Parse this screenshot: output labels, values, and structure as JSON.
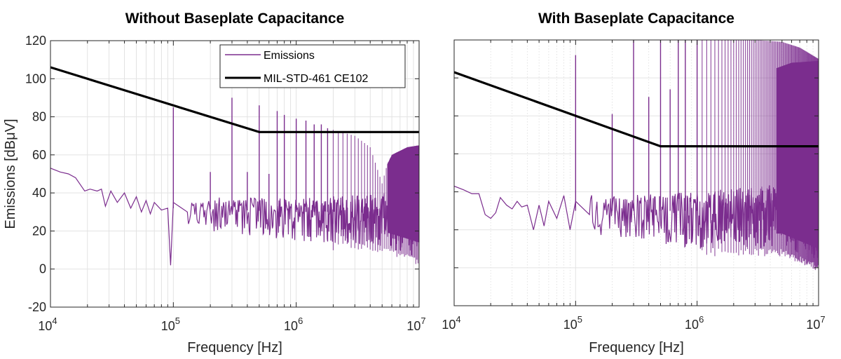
{
  "chart_data": [
    {
      "type": "line",
      "title": "Without Baseplate Capacitance",
      "xlabel": "Frequency [Hz]",
      "ylabel": "Emissions [dBμV]",
      "xscale": "log",
      "xlim": [
        10000,
        10000000
      ],
      "ylim": [
        -20,
        120
      ],
      "yticks": [
        -20,
        0,
        20,
        40,
        60,
        80,
        100,
        120
      ],
      "ytick_labels": [
        "-20",
        "0",
        "20",
        "40",
        "60",
        "80",
        "100",
        "120"
      ],
      "xticks": [
        10000,
        100000,
        1000000,
        10000000
      ],
      "xtick_labels": [
        {
          "base": "10",
          "exp": "4"
        },
        {
          "base": "10",
          "exp": "5"
        },
        {
          "base": "10",
          "exp": "6"
        },
        {
          "base": "10",
          "exp": "7"
        }
      ],
      "show_ytick_labels": true,
      "grid": true,
      "legend": {
        "placement": "top-right",
        "entries": [
          "Emissions",
          "MIL-STD-461 CE102"
        ]
      },
      "series": [
        {
          "name": "Emissions",
          "color": "#7B2D8E",
          "kind": "noisy-spectrum",
          "low_freq_trend": [
            [
              10000,
              53
            ],
            [
              12000,
              51
            ],
            [
              14000,
              50
            ],
            [
              16000,
              48
            ],
            [
              19000,
              41
            ],
            [
              21000,
              42
            ],
            [
              24000,
              41
            ],
            [
              26000,
              42
            ],
            [
              28000,
              33
            ],
            [
              31000,
              41
            ],
            [
              35000,
              35
            ],
            [
              40000,
              40
            ],
            [
              45000,
              32
            ],
            [
              50000,
              38
            ],
            [
              55000,
              30
            ],
            [
              60000,
              36
            ],
            [
              65000,
              29
            ],
            [
              70000,
              35
            ],
            [
              80000,
              31
            ],
            [
              90000,
              32
            ],
            [
              95000,
              2
            ],
            [
              100000,
              35
            ],
            [
              130000,
              30
            ]
          ],
          "noise_center": [
            [
              100000,
              32
            ],
            [
              1000000,
              30
            ],
            [
              5000000,
              30
            ],
            [
              10000000,
              30
            ]
          ],
          "noise_upper": [
            [
              100000,
              38
            ],
            [
              1000000,
              37
            ],
            [
              5000000,
              40
            ],
            [
              10000000,
              40
            ]
          ],
          "noise_lower": [
            [
              100000,
              22
            ],
            [
              1000000,
              15
            ],
            [
              5000000,
              12
            ],
            [
              10000000,
              6
            ]
          ],
          "spikes": [
            [
              100000,
              85
            ],
            [
              200000,
              51
            ],
            [
              300000,
              90
            ],
            [
              400000,
              51
            ],
            [
              500000,
              86
            ],
            [
              600000,
              50
            ],
            [
              700000,
              83
            ],
            [
              800000,
              81
            ],
            [
              1000000,
              79
            ],
            [
              1200000,
              78
            ],
            [
              1400000,
              76
            ],
            [
              1600000,
              76
            ],
            [
              1800000,
              74
            ]
          ],
          "harmonic_envelope": [
            [
              1800000,
              74
            ],
            [
              3000000,
              70
            ],
            [
              4000000,
              64
            ],
            [
              5000000,
              45
            ],
            [
              5500000,
              55
            ],
            [
              6000000,
              60
            ],
            [
              8000000,
              64
            ],
            [
              10000000,
              65
            ]
          ],
          "harmonic_fund_hz": 200000,
          "dense_band_start_hz": 5500000
        },
        {
          "name": "MIL-STD-461 CE102",
          "color": "#000000",
          "kind": "limit",
          "points": [
            [
              10000,
              106
            ],
            [
              500000,
              72
            ],
            [
              10000000,
              72
            ]
          ]
        }
      ]
    },
    {
      "type": "line",
      "title": "With Baseplate Capacitance",
      "xlabel": "Frequency [Hz]",
      "ylabel": "",
      "xscale": "log",
      "xlim": [
        10000,
        10000000
      ],
      "ylim": [
        -20,
        120
      ],
      "yticks": [
        -20,
        0,
        20,
        40,
        60,
        80,
        100,
        120
      ],
      "ytick_labels": [],
      "xticks": [
        10000,
        100000,
        1000000,
        10000000
      ],
      "xtick_labels": [
        {
          "base": "10",
          "exp": "4"
        },
        {
          "base": "10",
          "exp": "5"
        },
        {
          "base": "10",
          "exp": "6"
        },
        {
          "base": "10",
          "exp": "7"
        }
      ],
      "show_ytick_labels": false,
      "grid": true,
      "series": [
        {
          "name": "Emissions",
          "color": "#7B2D8E",
          "kind": "noisy-spectrum",
          "low_freq_trend": [
            [
              10000,
              43
            ],
            [
              12000,
              41
            ],
            [
              14000,
              39
            ],
            [
              16000,
              39
            ],
            [
              18000,
              28
            ],
            [
              20000,
              26
            ],
            [
              22000,
              29
            ],
            [
              24000,
              37
            ],
            [
              27000,
              33
            ],
            [
              30000,
              31
            ],
            [
              33000,
              35
            ],
            [
              36000,
              32
            ],
            [
              40000,
              33
            ],
            [
              45000,
              20
            ],
            [
              50000,
              33
            ],
            [
              55000,
              22
            ],
            [
              60000,
              35
            ],
            [
              70000,
              26
            ],
            [
              80000,
              38
            ],
            [
              90000,
              20
            ],
            [
              100000,
              35
            ],
            [
              130000,
              28
            ]
          ],
          "noise_center": [
            [
              100000,
              30
            ],
            [
              1000000,
              30
            ],
            [
              5000000,
              30
            ],
            [
              10000000,
              28
            ]
          ],
          "noise_upper": [
            [
              100000,
              38
            ],
            [
              1000000,
              40
            ],
            [
              5000000,
              44
            ],
            [
              10000000,
              44
            ]
          ],
          "noise_lower": [
            [
              100000,
              18
            ],
            [
              1000000,
              10
            ],
            [
              5000000,
              10
            ],
            [
              10000000,
              2
            ]
          ],
          "spikes": [
            [
              100000,
              112
            ],
            [
              200000,
              81
            ],
            [
              300000,
              120
            ],
            [
              400000,
              90
            ],
            [
              500000,
              120
            ],
            [
              600000,
              94
            ],
            [
              700000,
              120
            ],
            [
              800000,
              120
            ],
            [
              1000000,
              120
            ]
          ],
          "harmonic_envelope": [
            [
              1000000,
              120
            ],
            [
              3000000,
              120
            ],
            [
              5000000,
              119
            ],
            [
              7000000,
              116
            ],
            [
              10000000,
              110
            ]
          ],
          "lower_band_envelope": [
            [
              2000000,
              98
            ],
            [
              4000000,
              104
            ],
            [
              6000000,
              108
            ],
            [
              10000000,
              109
            ]
          ],
          "harmonic_fund_hz": 100000,
          "dense_band_start_hz": 4500000
        },
        {
          "name": "MIL-STD-461 CE102",
          "color": "#000000",
          "kind": "limit",
          "points": [
            [
              10000,
              103
            ],
            [
              500000,
              64
            ],
            [
              10000000,
              64
            ]
          ]
        }
      ]
    }
  ]
}
